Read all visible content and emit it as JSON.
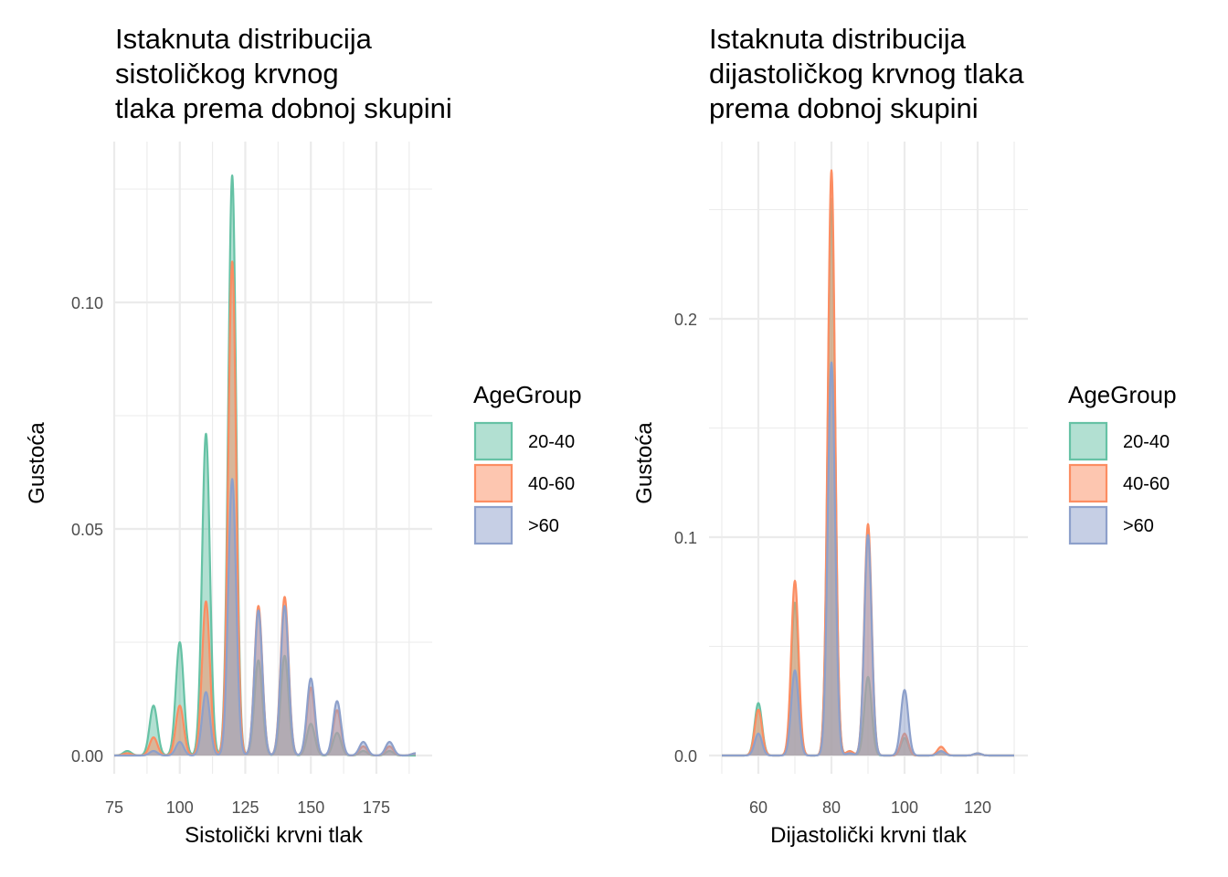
{
  "colors": {
    "20-40": "#66C2A5",
    "40-60": "#FC8D62",
    ">60": "#8DA0CB",
    "grid": "#EBEBEB"
  },
  "chart_data": [
    {
      "type": "area",
      "title": "Istaknuta distribucija\nsistoličkog krvnog\ntlaka prema dobnoj skupini",
      "xlabel": "Sistolički krvni tlak",
      "ylabel": "Gustoća",
      "xlim": [
        75,
        190
      ],
      "ylim": [
        0,
        0.13
      ],
      "x_ticks": [
        75,
        100,
        125,
        150,
        175
      ],
      "x_tick_labels": [
        "75",
        "100",
        "125",
        "150",
        "175"
      ],
      "y_ticks": [
        0,
        0.05,
        0.1
      ],
      "y_tick_labels": [
        "0.00",
        "0.05",
        "0.10"
      ],
      "grid": true,
      "peak_width": 1.5,
      "legend": {
        "title": "AgeGroup",
        "position": "right",
        "entries": [
          "20-40",
          "40-60",
          ">60"
        ]
      },
      "series": [
        {
          "name": "20-40",
          "peaks": [
            [
              80,
              0.001
            ],
            [
              90,
              0.011
            ],
            [
              100,
              0.025
            ],
            [
              110,
              0.071
            ],
            [
              120,
              0.128
            ],
            [
              130,
              0.021
            ],
            [
              140,
              0.022
            ],
            [
              150,
              0.007
            ],
            [
              160,
              0.005
            ],
            [
              170,
              0.001
            ],
            [
              180,
              0.001
            ]
          ]
        },
        {
          "name": "40-60",
          "peaks": [
            [
              80,
              0.0005
            ],
            [
              90,
              0.004
            ],
            [
              100,
              0.011
            ],
            [
              110,
              0.034
            ],
            [
              120,
              0.109
            ],
            [
              130,
              0.033
            ],
            [
              140,
              0.035
            ],
            [
              150,
              0.015
            ],
            [
              160,
              0.01
            ],
            [
              170,
              0.002
            ],
            [
              180,
              0.002
            ],
            [
              190,
              0.0005
            ]
          ]
        },
        {
          "name": ">60",
          "peaks": [
            [
              90,
              0.001
            ],
            [
              100,
              0.003
            ],
            [
              110,
              0.014
            ],
            [
              120,
              0.061
            ],
            [
              130,
              0.032
            ],
            [
              140,
              0.033
            ],
            [
              150,
              0.017
            ],
            [
              160,
              0.012
            ],
            [
              170,
              0.003
            ],
            [
              180,
              0.003
            ],
            [
              190,
              0.0005
            ]
          ]
        }
      ]
    },
    {
      "type": "area",
      "title": "Istaknuta distribucija\ndijastoličkog krvnog tlaka\nprema dobnoj skupini",
      "xlabel": "Dijastolički krvni tlak",
      "ylabel": "Gustoća",
      "xlim": [
        50,
        130
      ],
      "ylim": [
        0,
        0.27
      ],
      "x_ticks": [
        60,
        80,
        100,
        120
      ],
      "x_tick_labels": [
        "60",
        "80",
        "100",
        "120"
      ],
      "y_ticks": [
        0,
        0.1,
        0.2
      ],
      "y_tick_labels": [
        "0.0",
        "0.1",
        "0.2"
      ],
      "grid": true,
      "peak_width": 1.0,
      "legend": {
        "title": "AgeGroup",
        "position": "right",
        "entries": [
          "20-40",
          "40-60",
          ">60"
        ]
      },
      "series": [
        {
          "name": "20-40",
          "peaks": [
            [
              60,
              0.024
            ],
            [
              70,
              0.07
            ],
            [
              80,
              0.255
            ],
            [
              85,
              0.002
            ],
            [
              90,
              0.036
            ],
            [
              100,
              0.008
            ],
            [
              110,
              0.002
            ],
            [
              120,
              0.001
            ]
          ]
        },
        {
          "name": "40-60",
          "peaks": [
            [
              60,
              0.021
            ],
            [
              70,
              0.08
            ],
            [
              80,
              0.268
            ],
            [
              85,
              0.002
            ],
            [
              90,
              0.106
            ],
            [
              100,
              0.01
            ],
            [
              110,
              0.004
            ],
            [
              120,
              0.001
            ]
          ]
        },
        {
          "name": ">60",
          "peaks": [
            [
              60,
              0.01
            ],
            [
              70,
              0.039
            ],
            [
              80,
              0.18
            ],
            [
              85,
              0.001
            ],
            [
              90,
              0.101
            ],
            [
              100,
              0.03
            ],
            [
              110,
              0.002
            ],
            [
              120,
              0.001
            ]
          ]
        }
      ]
    }
  ]
}
